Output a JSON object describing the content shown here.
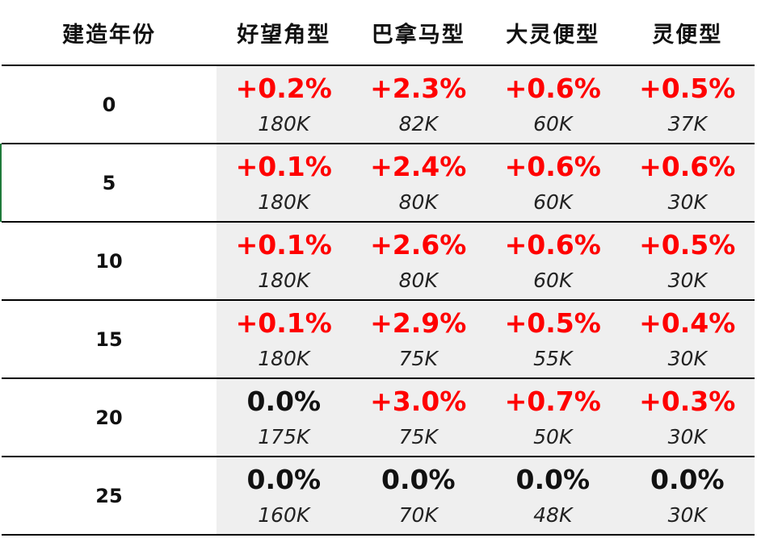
{
  "table": {
    "headers": [
      "建造年份",
      "好望角型",
      "巴拿马型",
      "大灵便型",
      "灵便型"
    ],
    "rows": [
      {
        "year": "0",
        "cells": [
          {
            "pct": "+0.2%",
            "amt": "180K",
            "highlight": true
          },
          {
            "pct": "+2.3%",
            "amt": "82K",
            "highlight": true
          },
          {
            "pct": "+0.6%",
            "amt": "60K",
            "highlight": true
          },
          {
            "pct": "+0.5%",
            "amt": "37K",
            "highlight": true
          }
        ]
      },
      {
        "year": "5",
        "cells": [
          {
            "pct": "+0.1%",
            "amt": "180K",
            "highlight": true
          },
          {
            "pct": "+2.4%",
            "amt": "80K",
            "highlight": true
          },
          {
            "pct": "+0.6%",
            "amt": "60K",
            "highlight": true
          },
          {
            "pct": "+0.6%",
            "amt": "30K",
            "highlight": true
          }
        ]
      },
      {
        "year": "10",
        "cells": [
          {
            "pct": "+0.1%",
            "amt": "180K",
            "highlight": true
          },
          {
            "pct": "+2.6%",
            "amt": "80K",
            "highlight": true
          },
          {
            "pct": "+0.6%",
            "amt": "60K",
            "highlight": true
          },
          {
            "pct": "+0.5%",
            "amt": "30K",
            "highlight": true
          }
        ]
      },
      {
        "year": "15",
        "cells": [
          {
            "pct": "+0.1%",
            "amt": "180K",
            "highlight": true
          },
          {
            "pct": "+2.9%",
            "amt": "75K",
            "highlight": true
          },
          {
            "pct": "+0.5%",
            "amt": "55K",
            "highlight": true
          },
          {
            "pct": "+0.4%",
            "amt": "30K",
            "highlight": true
          }
        ]
      },
      {
        "year": "20",
        "cells": [
          {
            "pct": "0.0%",
            "amt": "175K",
            "highlight": false
          },
          {
            "pct": "+3.0%",
            "amt": "75K",
            "highlight": true
          },
          {
            "pct": "+0.7%",
            "amt": "50K",
            "highlight": true
          },
          {
            "pct": "+0.3%",
            "amt": "30K",
            "highlight": true
          }
        ]
      },
      {
        "year": "25",
        "cells": [
          {
            "pct": "0.0%",
            "amt": "160K",
            "highlight": false
          },
          {
            "pct": "0.0%",
            "amt": "70K",
            "highlight": false
          },
          {
            "pct": "0.0%",
            "amt": "48K",
            "highlight": false
          },
          {
            "pct": "0.0%",
            "amt": "30K",
            "highlight": false
          }
        ]
      }
    ]
  },
  "colors": {
    "positive_text": "#ff0000",
    "neutral_text": "#111111",
    "data_cell_background": "#efefef",
    "grid_line": "#000000",
    "selection_mark": "#1f7a3a"
  }
}
